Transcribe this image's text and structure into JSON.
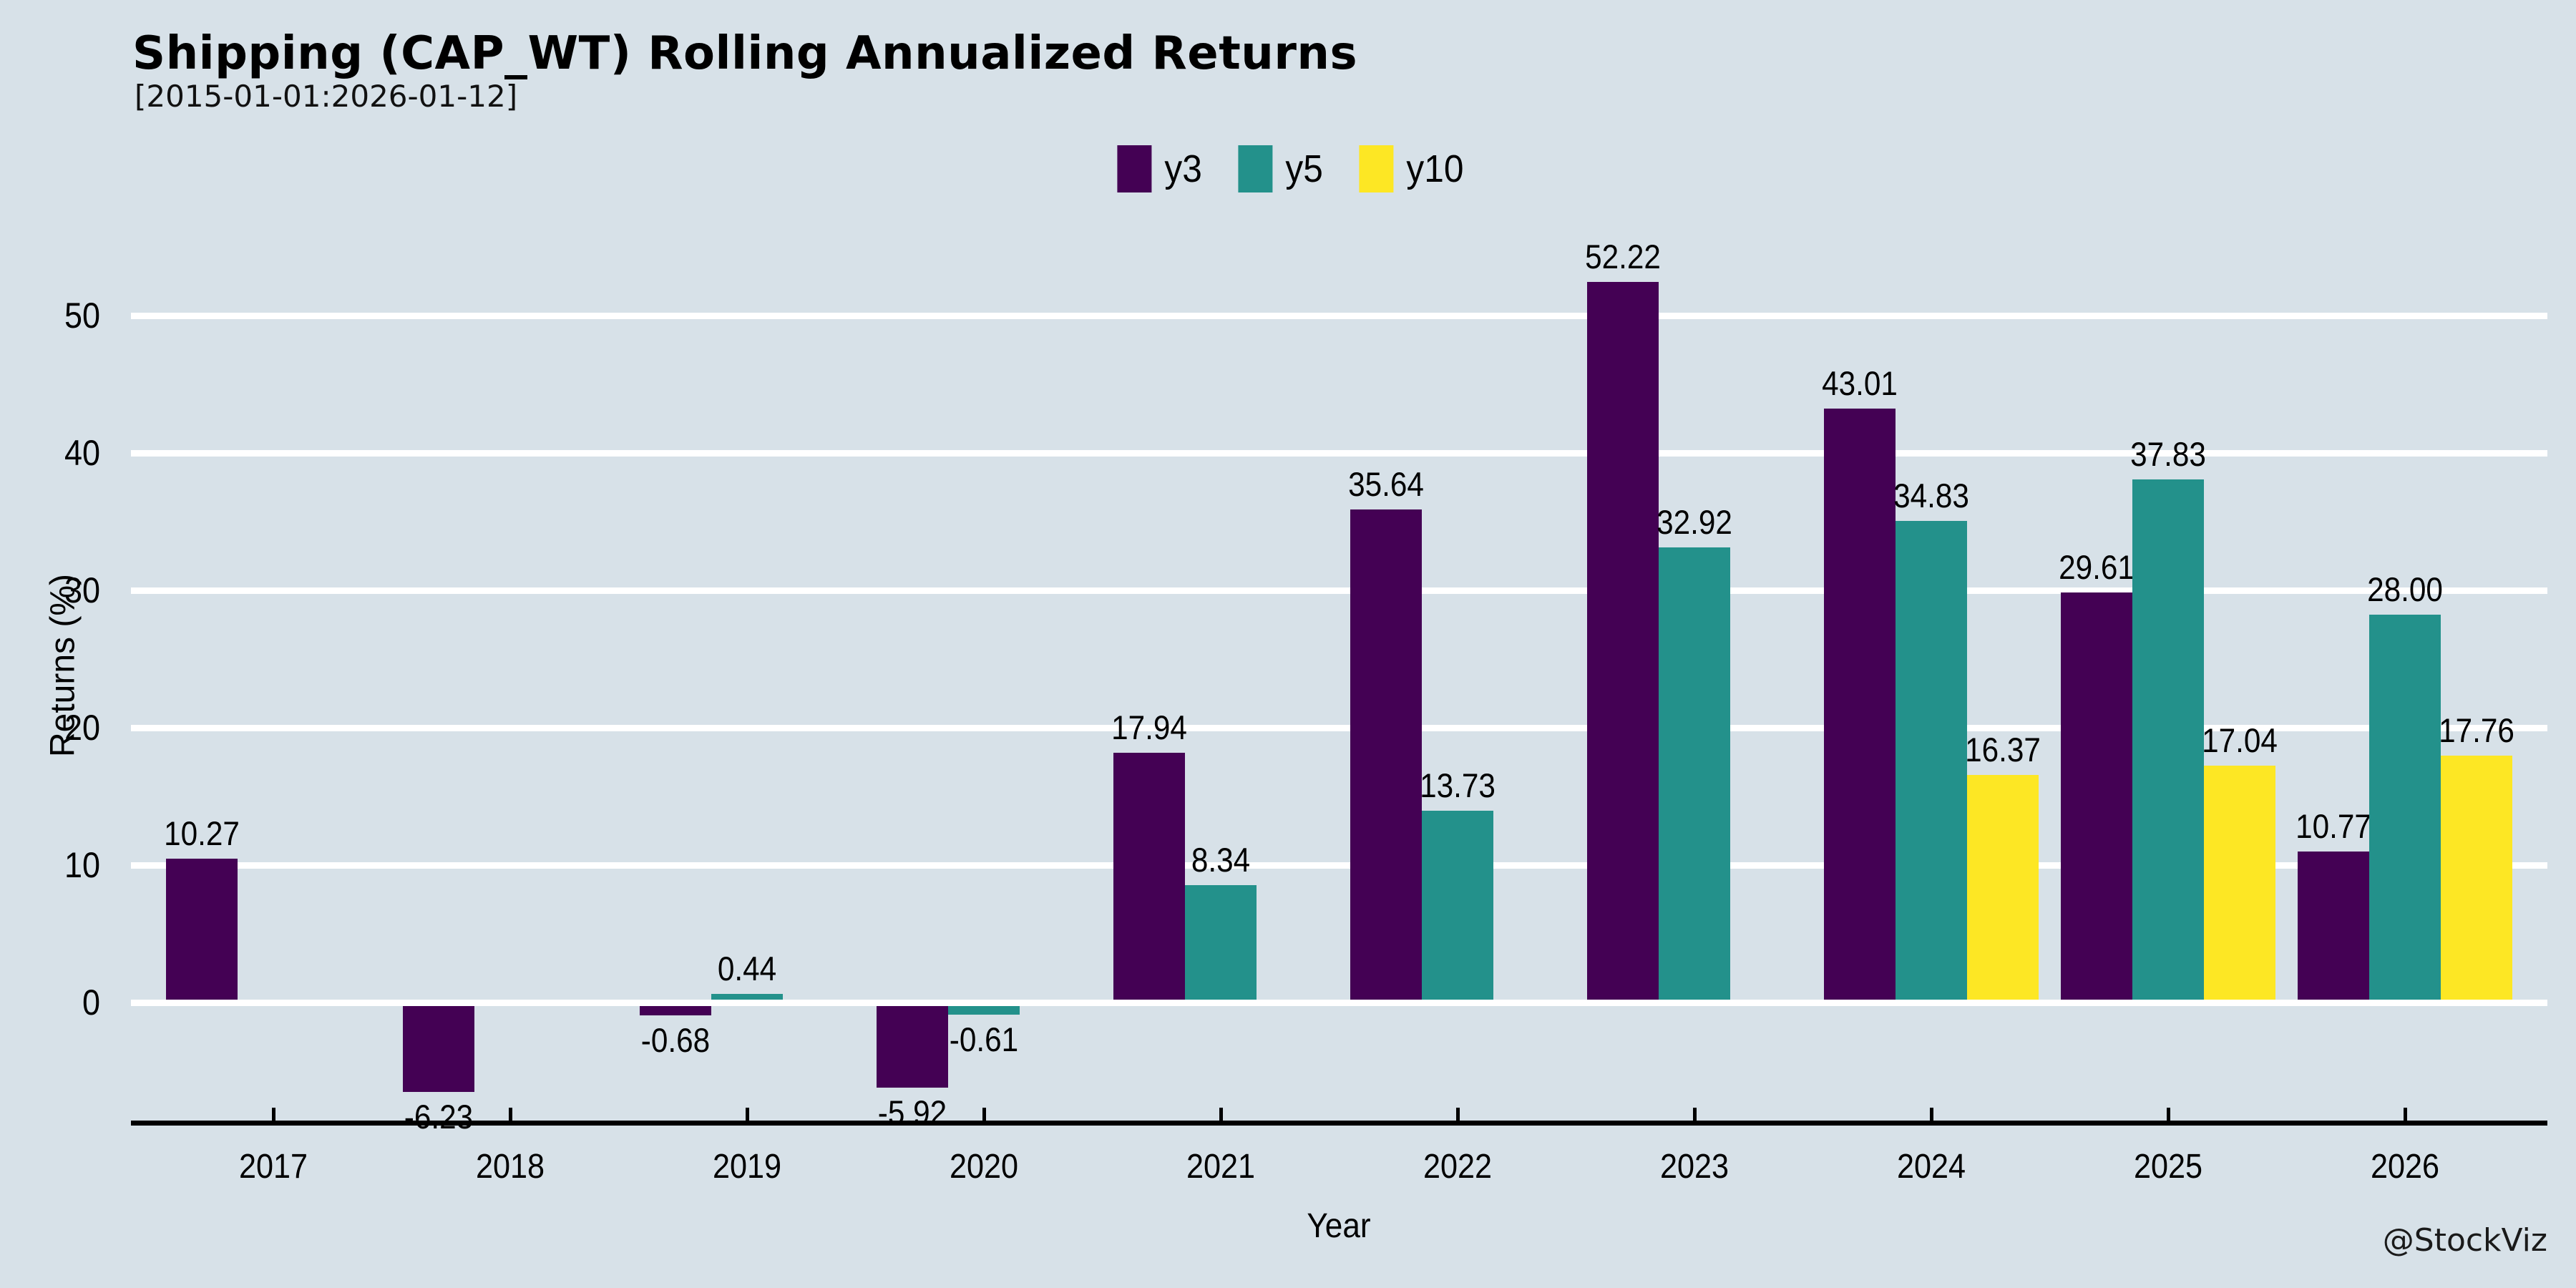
{
  "header": {
    "title": "Shipping (CAP_WT) Rolling Annualized Returns",
    "subtitle": "[2015-01-01:2026-01-12]"
  },
  "watermark": "@StockViz",
  "chart_data": {
    "type": "bar",
    "title": "Shipping (CAP_WT) Rolling Annualized Returns",
    "subtitle": "[2015-01-01:2026-01-12]",
    "xlabel": "Year",
    "ylabel": "Returns (%)",
    "categories": [
      "2017",
      "2018",
      "2019",
      "2020",
      "2021",
      "2022",
      "2023",
      "2024",
      "2025",
      "2026"
    ],
    "series": [
      {
        "name": "y3",
        "color": "#440154",
        "values": [
          10.27,
          -6.23,
          -0.68,
          -5.92,
          17.94,
          35.64,
          52.22,
          43.01,
          29.61,
          10.77
        ]
      },
      {
        "name": "y5",
        "color": "#23918b",
        "values": [
          null,
          null,
          0.44,
          -0.61,
          8.34,
          13.73,
          32.92,
          34.83,
          37.83,
          28.0
        ]
      },
      {
        "name": "y10",
        "color": "#fde724",
        "values": [
          null,
          null,
          null,
          null,
          null,
          null,
          null,
          16.37,
          17.04,
          17.76
        ]
      }
    ],
    "yticks": [
      0,
      10,
      20,
      30,
      40,
      50
    ],
    "ylim": [
      -8.5,
      55
    ],
    "value_label_decimals": 2,
    "grid": "horizontal-white-on-light-blue",
    "legend_position": "top-center",
    "background_color": "#d7e1e8",
    "gridline_color": "#ffffff",
    "axis_color": "#000000"
  }
}
